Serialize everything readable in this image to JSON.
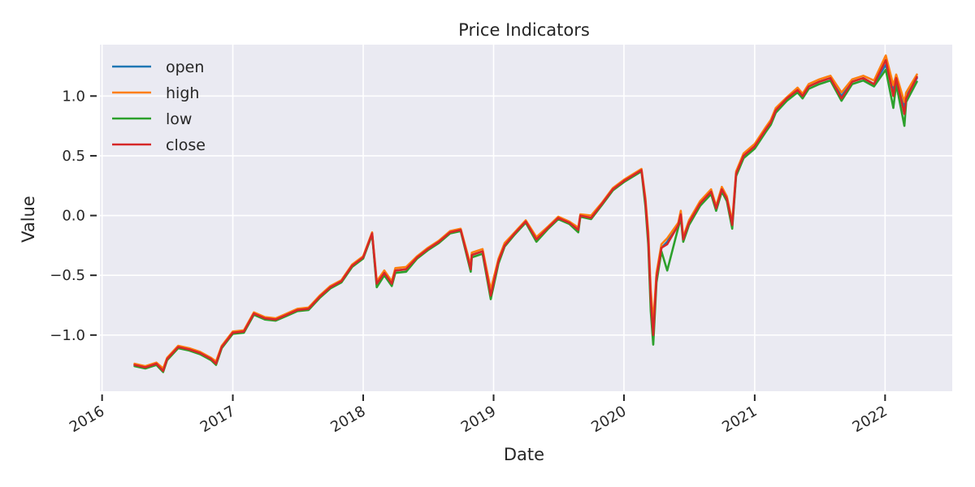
{
  "chart_data": {
    "type": "line",
    "title": "Price Indicators",
    "xlabel": "Date",
    "ylabel": "Value",
    "x_axis": {
      "type": "date",
      "range": [
        "2015-12-26",
        "2022-07-08"
      ],
      "ticks": [
        "2016-01-01",
        "2017-01-01",
        "2018-01-01",
        "2019-01-01",
        "2020-01-01",
        "2021-01-01",
        "2022-01-01"
      ],
      "tick_labels": [
        "2016",
        "2017",
        "2018",
        "2019",
        "2020",
        "2021",
        "2022"
      ]
    },
    "y_axis": {
      "range": [
        -1.47,
        1.43
      ],
      "ticks": [
        -1.0,
        -0.5,
        0.0,
        0.5,
        1.0
      ],
      "tick_labels": [
        "−1.0",
        "−0.5",
        "0.0",
        "0.5",
        "1.0"
      ]
    },
    "grid": true,
    "legend": "top-left",
    "colors": {
      "background": "#eaeaf2",
      "grid": "#ffffff",
      "text": "#262626"
    },
    "x": [
      "2016-04-01",
      "2016-05-01",
      "2016-06-01",
      "2016-06-20",
      "2016-07-01",
      "2016-08-01",
      "2016-09-01",
      "2016-10-01",
      "2016-11-01",
      "2016-11-15",
      "2016-12-01",
      "2017-01-01",
      "2017-02-01",
      "2017-03-01",
      "2017-04-01",
      "2017-05-01",
      "2017-06-01",
      "2017-07-01",
      "2017-08-01",
      "2017-09-01",
      "2017-10-01",
      "2017-11-01",
      "2017-12-01",
      "2018-01-01",
      "2018-01-26",
      "2018-02-08",
      "2018-03-01",
      "2018-03-22",
      "2018-04-01",
      "2018-05-01",
      "2018-06-01",
      "2018-07-01",
      "2018-08-01",
      "2018-09-01",
      "2018-10-01",
      "2018-10-29",
      "2018-11-01",
      "2018-12-01",
      "2018-12-24",
      "2019-01-15",
      "2019-02-01",
      "2019-03-01",
      "2019-04-01",
      "2019-05-01",
      "2019-06-03",
      "2019-07-01",
      "2019-08-01",
      "2019-08-26",
      "2019-09-01",
      "2019-10-01",
      "2019-11-01",
      "2019-12-01",
      "2020-01-01",
      "2020-02-19",
      "2020-03-01",
      "2020-03-09",
      "2020-03-16",
      "2020-03-23",
      "2020-04-01",
      "2020-04-15",
      "2020-05-01",
      "2020-06-01",
      "2020-06-08",
      "2020-06-15",
      "2020-07-01",
      "2020-08-01",
      "2020-09-01",
      "2020-09-15",
      "2020-10-01",
      "2020-10-15",
      "2020-10-30",
      "2020-11-10",
      "2020-12-01",
      "2021-01-01",
      "2021-02-01",
      "2021-02-15",
      "2021-03-01",
      "2021-04-01",
      "2021-05-01",
      "2021-05-15",
      "2021-06-01",
      "2021-07-01",
      "2021-08-01",
      "2021-09-01",
      "2021-10-01",
      "2021-11-01",
      "2021-12-01",
      "2022-01-03",
      "2022-01-24",
      "2022-02-01",
      "2022-02-24",
      "2022-03-01",
      "2022-03-31"
    ],
    "series": [
      {
        "name": "open",
        "color": "#1f77b4",
        "values": [
          -1.25,
          -1.27,
          -1.24,
          -1.29,
          -1.2,
          -1.1,
          -1.12,
          -1.15,
          -1.2,
          -1.23,
          -1.1,
          -0.98,
          -0.97,
          -0.82,
          -0.86,
          -0.87,
          -0.83,
          -0.79,
          -0.78,
          -0.68,
          -0.6,
          -0.55,
          -0.42,
          -0.35,
          -0.15,
          -0.58,
          -0.48,
          -0.57,
          -0.46,
          -0.45,
          -0.35,
          -0.28,
          -0.22,
          -0.14,
          -0.12,
          -0.45,
          -0.33,
          -0.3,
          -0.66,
          -0.38,
          -0.25,
          -0.15,
          -0.05,
          -0.2,
          -0.1,
          -0.02,
          -0.06,
          -0.12,
          0.0,
          -0.02,
          0.1,
          0.22,
          0.29,
          0.38,
          0.12,
          -0.2,
          -0.72,
          -0.96,
          -0.52,
          -0.27,
          -0.22,
          -0.08,
          0.0,
          -0.2,
          -0.06,
          0.1,
          0.2,
          0.06,
          0.22,
          0.14,
          -0.08,
          0.35,
          0.5,
          0.58,
          0.72,
          0.78,
          0.88,
          0.98,
          1.05,
          1.0,
          1.08,
          1.12,
          1.15,
          1.0,
          1.12,
          1.15,
          1.1,
          1.26,
          1.05,
          1.15,
          0.9,
          1.0,
          1.15
        ]
      },
      {
        "name": "high",
        "color": "#ff7f0e",
        "values": [
          -1.24,
          -1.26,
          -1.23,
          -1.28,
          -1.19,
          -1.09,
          -1.11,
          -1.14,
          -1.19,
          -1.22,
          -1.09,
          -0.97,
          -0.96,
          -0.81,
          -0.85,
          -0.86,
          -0.82,
          -0.78,
          -0.77,
          -0.67,
          -0.59,
          -0.54,
          -0.41,
          -0.34,
          -0.14,
          -0.55,
          -0.46,
          -0.55,
          -0.44,
          -0.43,
          -0.34,
          -0.27,
          -0.21,
          -0.13,
          -0.11,
          -0.42,
          -0.31,
          -0.28,
          -0.62,
          -0.36,
          -0.23,
          -0.14,
          -0.04,
          -0.18,
          -0.09,
          -0.01,
          -0.05,
          -0.1,
          0.01,
          0.0,
          0.11,
          0.23,
          0.3,
          0.39,
          0.15,
          -0.14,
          -0.62,
          -0.9,
          -0.48,
          -0.24,
          -0.19,
          -0.06,
          0.04,
          -0.18,
          -0.04,
          0.12,
          0.22,
          0.08,
          0.24,
          0.16,
          -0.05,
          0.37,
          0.52,
          0.6,
          0.74,
          0.8,
          0.9,
          0.99,
          1.07,
          1.02,
          1.1,
          1.14,
          1.17,
          1.03,
          1.14,
          1.17,
          1.13,
          1.34,
          1.09,
          1.18,
          0.95,
          1.03,
          1.18
        ]
      },
      {
        "name": "low",
        "color": "#2ca02c",
        "values": [
          -1.26,
          -1.28,
          -1.25,
          -1.31,
          -1.21,
          -1.11,
          -1.13,
          -1.16,
          -1.21,
          -1.25,
          -1.11,
          -0.99,
          -0.98,
          -0.83,
          -0.87,
          -0.88,
          -0.84,
          -0.8,
          -0.79,
          -0.69,
          -0.61,
          -0.56,
          -0.43,
          -0.36,
          -0.16,
          -0.6,
          -0.5,
          -0.59,
          -0.48,
          -0.47,
          -0.36,
          -0.29,
          -0.23,
          -0.15,
          -0.13,
          -0.47,
          -0.35,
          -0.32,
          -0.7,
          -0.4,
          -0.26,
          -0.16,
          -0.06,
          -0.22,
          -0.11,
          -0.03,
          -0.07,
          -0.14,
          -0.01,
          -0.03,
          0.09,
          0.21,
          0.28,
          0.37,
          0.08,
          -0.25,
          -0.8,
          -1.08,
          -0.56,
          -0.3,
          -0.46,
          -0.1,
          -0.02,
          -0.22,
          -0.08,
          0.08,
          0.18,
          0.04,
          0.2,
          0.12,
          -0.11,
          0.33,
          0.48,
          0.56,
          0.7,
          0.76,
          0.86,
          0.96,
          1.03,
          0.98,
          1.06,
          1.1,
          1.13,
          0.96,
          1.1,
          1.13,
          1.08,
          1.22,
          0.9,
          1.1,
          0.75,
          0.95,
          1.12
        ]
      },
      {
        "name": "close",
        "color": "#d62728",
        "values": [
          -1.25,
          -1.27,
          -1.24,
          -1.3,
          -1.2,
          -1.1,
          -1.12,
          -1.15,
          -1.2,
          -1.24,
          -1.1,
          -0.98,
          -0.97,
          -0.82,
          -0.86,
          -0.87,
          -0.83,
          -0.79,
          -0.78,
          -0.68,
          -0.6,
          -0.55,
          -0.42,
          -0.35,
          -0.15,
          -0.57,
          -0.48,
          -0.57,
          -0.46,
          -0.45,
          -0.35,
          -0.28,
          -0.22,
          -0.14,
          -0.12,
          -0.45,
          -0.33,
          -0.3,
          -0.67,
          -0.38,
          -0.25,
          -0.15,
          -0.05,
          -0.2,
          -0.1,
          -0.02,
          -0.06,
          -0.12,
          0.0,
          -0.02,
          0.1,
          0.22,
          0.29,
          0.38,
          0.12,
          -0.2,
          -0.7,
          -1.0,
          -0.52,
          -0.27,
          -0.24,
          -0.08,
          0.01,
          -0.2,
          -0.06,
          0.1,
          0.2,
          0.06,
          0.22,
          0.14,
          -0.08,
          0.35,
          0.5,
          0.58,
          0.72,
          0.78,
          0.88,
          0.98,
          1.05,
          1.0,
          1.08,
          1.12,
          1.15,
          0.98,
          1.12,
          1.15,
          1.1,
          1.3,
          1.0,
          1.15,
          0.85,
          0.98,
          1.16
        ]
      }
    ]
  }
}
